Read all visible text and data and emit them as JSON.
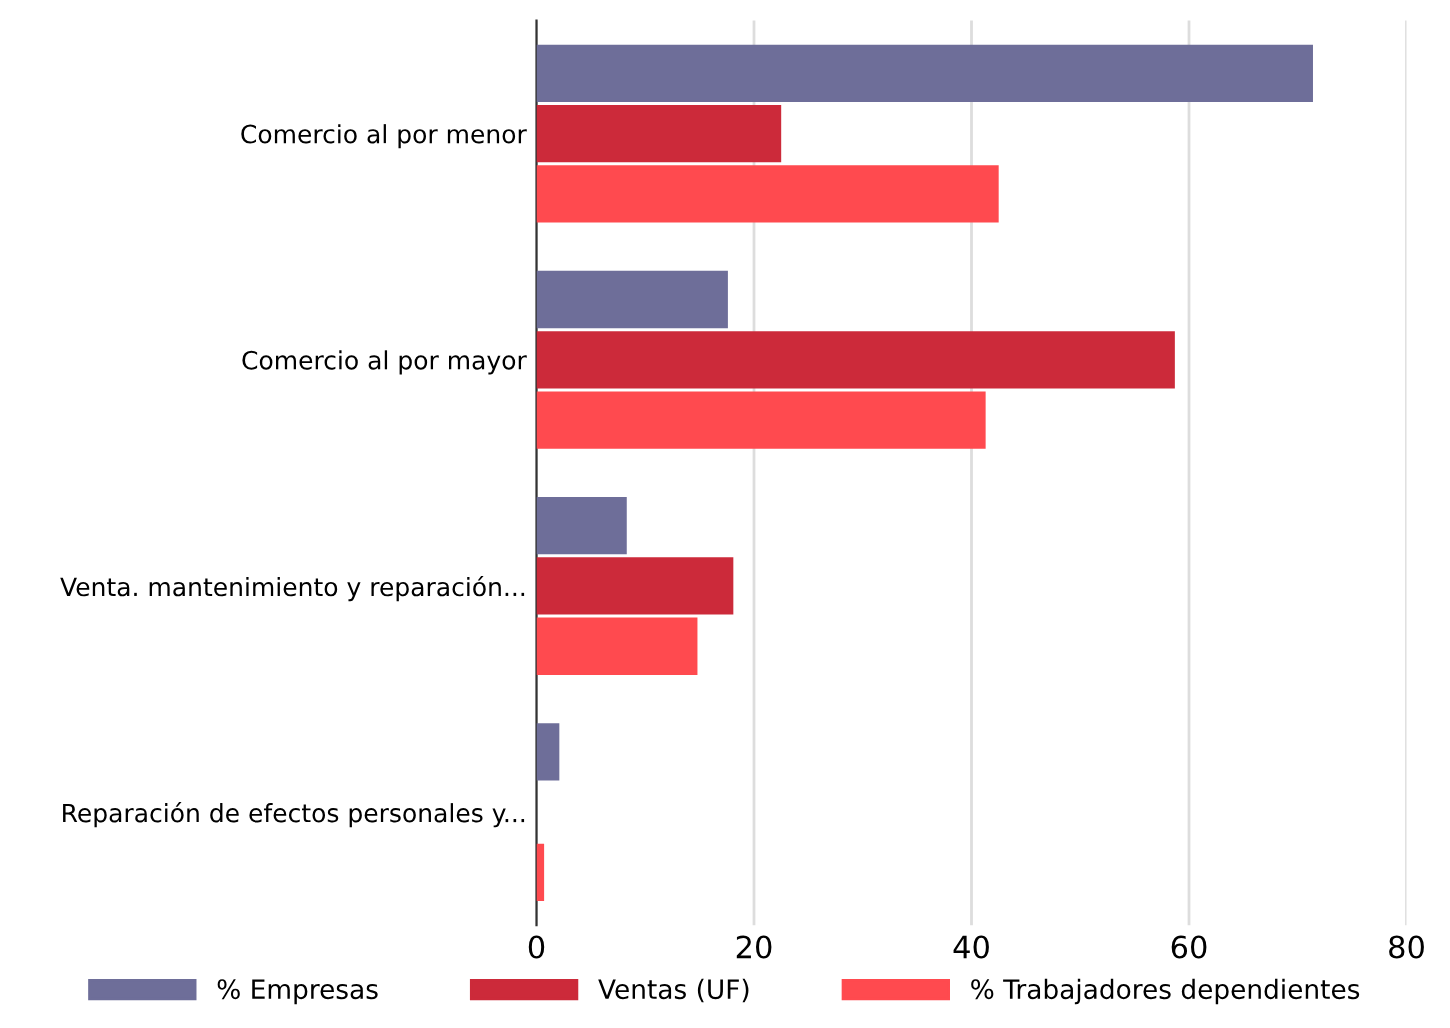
{
  "chart_data": {
    "type": "bar",
    "orientation": "horizontal",
    "categories": [
      "Comercio al por menor",
      "Comercio al por mayor",
      "Venta. mantenimiento y reparación...",
      "Reparación de efectos personales y..."
    ],
    "series": [
      {
        "name": "% Empresas",
        "color": "#6e6e99",
        "values": [
          71.4,
          17.6,
          8.3,
          2.1
        ]
      },
      {
        "name": "Ventas (UF)",
        "color": "#cc2a3a",
        "values": [
          22.5,
          58.7,
          18.1,
          0
        ]
      },
      {
        "name": "% Trabajadores dependientes",
        "color": "#ff4a4f",
        "values": [
          42.5,
          41.3,
          14.8,
          0.7
        ]
      }
    ],
    "xlim": [
      0,
      80
    ],
    "xticks": [
      0,
      20,
      40,
      60,
      80
    ],
    "grid": "x",
    "legend": "bottom"
  }
}
